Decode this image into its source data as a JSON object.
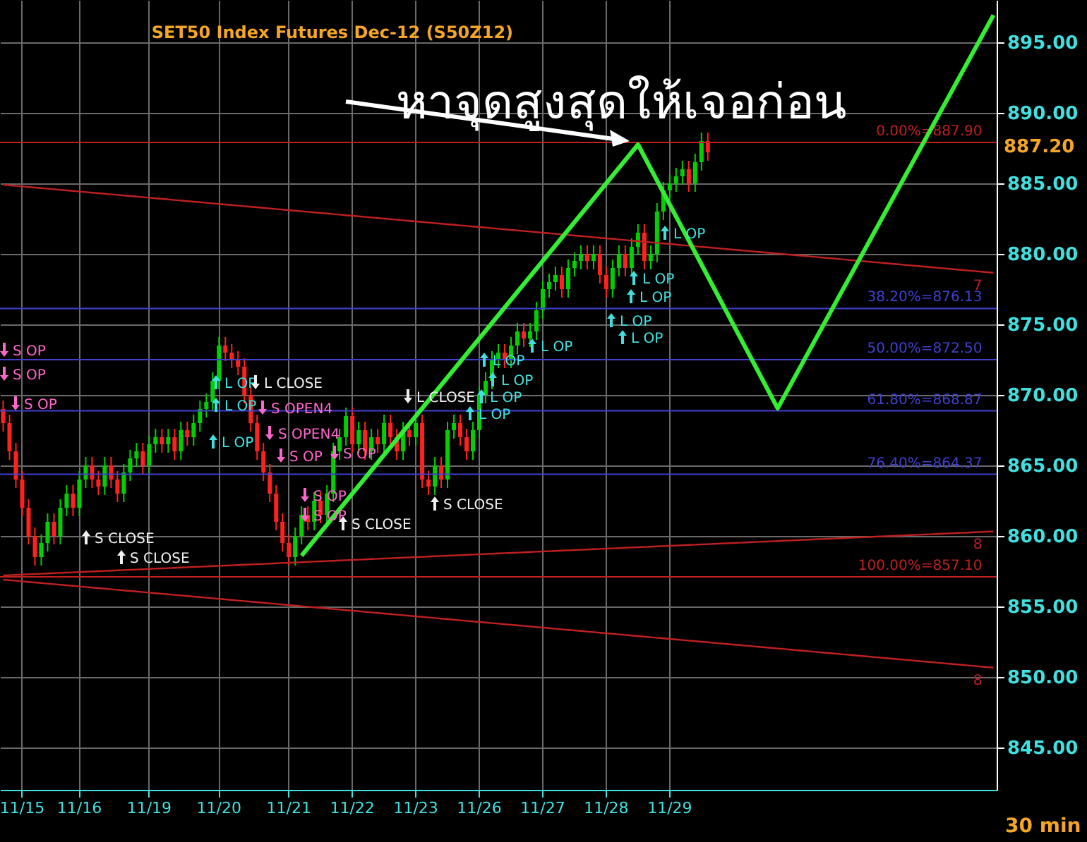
{
  "chart_data": {
    "type": "candlestick",
    "title": "SET50  Index  Futures  Dec-12  (S50Z12)",
    "categories": [
      null,
      null,
      null,
      "11/15",
      null,
      null,
      null,
      null,
      null,
      null,
      null,
      null,
      "11/16",
      null,
      null,
      null,
      null,
      null,
      null,
      null,
      null,
      null,
      null,
      "11/19",
      null,
      null,
      null,
      null,
      null,
      null,
      null,
      null,
      null,
      null,
      "11/20",
      null,
      null,
      null,
      null,
      null,
      null,
      null,
      null,
      null,
      null,
      "11/21",
      null,
      null,
      null,
      null,
      null,
      null,
      null,
      null,
      null,
      "11/22",
      null,
      null,
      null,
      null,
      null,
      null,
      null,
      null,
      null,
      "11/23",
      null,
      null,
      null,
      null,
      null,
      null,
      null,
      null,
      null,
      "11/26",
      null,
      null,
      null,
      null,
      null,
      null,
      null,
      null,
      null,
      "11/27",
      null,
      null,
      null,
      null,
      null,
      null,
      null,
      null,
      null,
      "11/28",
      null,
      null,
      null,
      null,
      null,
      null,
      null,
      null,
      null,
      "11/29",
      null,
      null,
      null,
      null,
      null,
      null,
      null,
      null,
      null,
      null,
      null,
      null,
      null,
      null,
      null,
      null,
      null,
      null,
      null,
      null,
      null,
      null,
      null,
      null,
      null,
      null,
      null,
      null,
      null,
      null,
      null,
      null,
      null,
      null,
      null,
      null,
      null,
      null,
      null,
      null,
      null,
      null,
      null,
      null,
      null,
      null,
      null,
      null,
      null,
      null,
      null
    ],
    "ohlc": [
      [
        869,
        869.6,
        867.4,
        868
      ],
      [
        868,
        868.6,
        865.4,
        866
      ],
      [
        866,
        866.6,
        863.4,
        864
      ],
      [
        864,
        864.6,
        861.4,
        862
      ],
      [
        862,
        862.6,
        859.4,
        860
      ],
      [
        860,
        860.6,
        857.9,
        858.5
      ],
      [
        858.5,
        860.1,
        857.9,
        859.5
      ],
      [
        859.5,
        861.6,
        858.9,
        861
      ],
      [
        861,
        861.6,
        859.4,
        860
      ],
      [
        860,
        862.6,
        859.4,
        862
      ],
      [
        862,
        863.6,
        861.4,
        863
      ],
      [
        863,
        863.6,
        861.4,
        862
      ],
      [
        862,
        864.6,
        861.4,
        864
      ],
      [
        864,
        865.6,
        863.4,
        865
      ],
      [
        865,
        865.6,
        863.4,
        864
      ],
      [
        864,
        864.6,
        862.9,
        863.5
      ],
      [
        863.5,
        865.6,
        862.9,
        865
      ],
      [
        865,
        865.6,
        863.4,
        864
      ],
      [
        864,
        864.6,
        862.4,
        863
      ],
      [
        863,
        865.1,
        862.4,
        864.5
      ],
      [
        864.5,
        866.1,
        863.9,
        865.5
      ],
      [
        865.5,
        866.6,
        864.9,
        866
      ],
      [
        866,
        866.6,
        864.4,
        865
      ],
      [
        865,
        867.1,
        864.4,
        866.5
      ],
      [
        866.5,
        867.6,
        865.9,
        867
      ],
      [
        867,
        867.6,
        865.9,
        866.5
      ],
      [
        866.5,
        867.6,
        865.9,
        867
      ],
      [
        867,
        867.6,
        865.4,
        866
      ],
      [
        866,
        868.1,
        865.4,
        867.5
      ],
      [
        867.5,
        868.1,
        866.4,
        867
      ],
      [
        867,
        868.6,
        866.4,
        868
      ],
      [
        868,
        869.6,
        867.4,
        869
      ],
      [
        869,
        870.1,
        868.4,
        869.5
      ],
      [
        869.5,
        871.6,
        868.9,
        871
      ],
      [
        871,
        874.1,
        870.4,
        873.5
      ],
      [
        873.5,
        874.1,
        872.4,
        873
      ],
      [
        873,
        873.6,
        871.9,
        872.5
      ],
      [
        872.5,
        873.1,
        871.4,
        872
      ],
      [
        872,
        872.6,
        869.4,
        870
      ],
      [
        870,
        870.6,
        867.4,
        868
      ],
      [
        868,
        868.6,
        865.4,
        866
      ],
      [
        866,
        866.6,
        863.9,
        864.5
      ],
      [
        864.5,
        865.1,
        862.4,
        863
      ],
      [
        863,
        863.6,
        860.4,
        861
      ],
      [
        861,
        861.6,
        858.9,
        859.5
      ],
      [
        859.5,
        860.1,
        857.9,
        858.5
      ],
      [
        858.5,
        860.6,
        857.9,
        860
      ],
      [
        860,
        862.1,
        859.4,
        861.5
      ],
      [
        861.5,
        862.1,
        860.4,
        861
      ],
      [
        861,
        863.1,
        860.4,
        862.5
      ],
      [
        862.5,
        863.1,
        860.9,
        861.5
      ],
      [
        861.5,
        863.6,
        860.9,
        863
      ],
      [
        863,
        866.6,
        862.4,
        866
      ],
      [
        866,
        867.6,
        865.4,
        867
      ],
      [
        867,
        869.1,
        866.4,
        868.5
      ],
      [
        868.5,
        869.1,
        865.9,
        866.5
      ],
      [
        866.5,
        868.1,
        865.9,
        867.5
      ],
      [
        867.5,
        868.1,
        865.4,
        866
      ],
      [
        866,
        867.6,
        865.4,
        867
      ],
      [
        867,
        867.6,
        865.9,
        866.5
      ],
      [
        866.5,
        868.6,
        865.9,
        868
      ],
      [
        868,
        868.6,
        866.4,
        867
      ],
      [
        867,
        867.6,
        865.4,
        866
      ],
      [
        866,
        868.1,
        865.4,
        867.5
      ],
      [
        867.5,
        868.1,
        866.4,
        867
      ],
      [
        867,
        868.6,
        866.4,
        868
      ],
      [
        868,
        868.6,
        863.4,
        864
      ],
      [
        864,
        864.6,
        862.9,
        863.5
      ],
      [
        863.5,
        865.6,
        862.9,
        865
      ],
      [
        865,
        865.6,
        863.4,
        864
      ],
      [
        864,
        868.1,
        863.4,
        867.5
      ],
      [
        867.5,
        868.6,
        866.9,
        868
      ],
      [
        868,
        868.6,
        866.4,
        867
      ],
      [
        867,
        867.6,
        865.4,
        866
      ],
      [
        866,
        868.1,
        865.4,
        867.5
      ],
      [
        867.5,
        870.6,
        866.9,
        870
      ],
      [
        870,
        871.6,
        869.4,
        871
      ],
      [
        871,
        873.1,
        870.4,
        872.5
      ],
      [
        872.5,
        873.6,
        871.9,
        873
      ],
      [
        873,
        873.6,
        871.9,
        872.5
      ],
      [
        872.5,
        874.1,
        871.9,
        873.5
      ],
      [
        873.5,
        875.1,
        872.9,
        874.5
      ],
      [
        874.5,
        875.1,
        873.4,
        874
      ],
      [
        874,
        875.1,
        873.4,
        874.5
      ],
      [
        874.5,
        876.6,
        873.9,
        876
      ],
      [
        876,
        878.1,
        875.4,
        877.5
      ],
      [
        877.5,
        878.6,
        876.9,
        878
      ],
      [
        878,
        879.1,
        877.4,
        878.5
      ],
      [
        878.5,
        879.1,
        876.9,
        877.5
      ],
      [
        877.5,
        879.6,
        876.9,
        879
      ],
      [
        879,
        880.1,
        878.4,
        879.5
      ],
      [
        879.5,
        880.6,
        878.9,
        880
      ],
      [
        880,
        880.6,
        878.9,
        879.5
      ],
      [
        879.5,
        880.6,
        878.9,
        880
      ],
      [
        880,
        880.6,
        877.9,
        878.5
      ],
      [
        878.5,
        879.1,
        876.9,
        877.5
      ],
      [
        877.5,
        879.6,
        876.9,
        879
      ],
      [
        879,
        880.6,
        878.4,
        880
      ],
      [
        880,
        880.6,
        878.4,
        879
      ],
      [
        879,
        881.1,
        878.4,
        880.5
      ],
      [
        880.5,
        882.1,
        879.9,
        881.5
      ],
      [
        881.5,
        882.1,
        878.9,
        879.5
      ],
      [
        879.5,
        880.6,
        878.9,
        880
      ],
      [
        880,
        883.6,
        879.4,
        883
      ],
      [
        883,
        885.1,
        882.4,
        884.5
      ],
      [
        884.5,
        885.6,
        883.9,
        885
      ],
      [
        885,
        886.1,
        884.4,
        885.5
      ],
      [
        885.5,
        886.6,
        884.9,
        886
      ],
      [
        886,
        886.6,
        884.4,
        885
      ],
      [
        885,
        887.1,
        884.4,
        886.5
      ],
      [
        886.5,
        888.6,
        885.9,
        888
      ],
      [
        888,
        888.6,
        886.6,
        887.2
      ],
      null,
      null,
      null,
      null,
      null,
      null,
      null,
      null,
      null,
      null,
      null,
      null,
      null,
      null,
      null,
      null,
      null,
      null,
      null,
      null,
      null,
      null,
      null,
      null,
      null,
      null,
      null,
      null,
      null,
      null,
      null,
      null,
      null,
      null,
      null,
      null,
      null,
      null,
      null,
      null,
      null,
      null,
      null,
      null,
      null
    ],
    "colors": [
      "#ff2020",
      "#ff2020",
      "#ff2020",
      "#ff2020",
      "#ff2020",
      "#ff2020",
      "#00d000",
      "#00d000",
      "#ff2020",
      "#00d000",
      "#00d000",
      "#ff2020",
      "#00d000",
      "#00d000",
      "#ff2020",
      "#ff2020",
      "#00d000",
      "#ff2020",
      "#ff2020",
      "#00d000",
      "#00d000",
      "#00d000",
      "#ff2020",
      "#00d000",
      "#00d000",
      "#ff2020",
      "#00d000",
      "#ff2020",
      "#00d000",
      "#ff2020",
      "#00d000",
      "#00d000",
      "#00d000",
      "#00d000",
      "#00d000",
      "#ff2020",
      "#ff2020",
      "#ff2020",
      "#ff2020",
      "#ff2020",
      "#ff2020",
      "#ff2020",
      "#ff2020",
      "#ff2020",
      "#ff2020",
      "#ff2020",
      "#00d000",
      "#00d000",
      "#ff2020",
      "#00d000",
      "#ff2020",
      "#00d000",
      "#00d000",
      "#00d000",
      "#00d000",
      "#ff2020",
      "#00d000",
      "#ff2020",
      "#00d000",
      "#ff2020",
      "#00d000",
      "#ff2020",
      "#ff2020",
      "#00d000",
      "#ff2020",
      "#00d000",
      "#ff2020",
      "#ff2020",
      "#00d000",
      "#ff2020",
      "#00d000",
      "#00d000",
      "#ff2020",
      "#ff2020",
      "#00d000",
      "#00d000",
      "#00d000",
      "#00d000",
      "#00d000",
      "#ff2020",
      "#00d000",
      "#00d000",
      "#ff2020",
      "#00d000",
      "#00d000",
      "#00d000",
      "#00d000",
      "#00d000",
      "#ff2020",
      "#00d000",
      "#00d000",
      "#00d000",
      "#ff2020",
      "#00d000",
      "#ff2020",
      "#ff2020",
      "#00d000",
      "#00d000",
      "#ff2020",
      "#00d000",
      "#00d000",
      "#ff2020",
      "#00d000",
      "#00d000",
      "#00d000",
      "#00d000",
      "#00d000",
      "#00d000",
      "#ff2020",
      "#00d000",
      "#00d000",
      "#ff2020",
      null,
      null,
      null,
      null,
      null,
      null,
      null,
      null,
      null,
      null,
      null,
      null,
      null,
      null,
      null,
      null,
      null,
      null,
      null,
      null,
      null,
      null,
      null,
      null,
      null,
      null,
      null,
      null,
      null,
      null,
      null,
      null,
      null,
      null,
      null,
      null,
      null,
      null,
      null,
      null,
      null,
      null,
      null,
      null,
      null
    ],
    "series": [
      {
        "type": "line",
        "name": "7",
        "color": "#c02020",
        "values": [
          884.9,
          884.86,
          884.82,
          884.78,
          884.74,
          884.7,
          884.66,
          884.62,
          884.58,
          884.54,
          884.5,
          884.46,
          884.42,
          884.38,
          884.34,
          884.3,
          884.26,
          884.22,
          884.18,
          884.14,
          884.1,
          884.06,
          884.02,
          883.98,
          883.94,
          883.9,
          883.86,
          883.82,
          883.78,
          883.74,
          883.7,
          883.66,
          883.62,
          883.58,
          883.54,
          883.5,
          883.46,
          883.42,
          883.38,
          883.34,
          883.3,
          883.26,
          883.22,
          883.18,
          883.14,
          883.1,
          883.06,
          883.02,
          882.98,
          882.94,
          882.9,
          882.86,
          882.82,
          882.78,
          882.74,
          882.7,
          882.66,
          882.62,
          882.58,
          882.54,
          882.5,
          882.46,
          882.42,
          882.38,
          882.34,
          882.3,
          882.26,
          882.22,
          882.18,
          882.14,
          882.1,
          882.06,
          882.02,
          881.98,
          881.94,
          881.9,
          881.86,
          881.82,
          881.78,
          881.74,
          881.7,
          881.66,
          881.62,
          881.58,
          881.54,
          881.5,
          881.46,
          881.42,
          881.38,
          881.34,
          881.3,
          881.26,
          881.22,
          881.18,
          881.14,
          881.1,
          881.06,
          881.02,
          880.98,
          880.94,
          880.9,
          880.86,
          880.82,
          880.78,
          880.74,
          880.7,
          880.66,
          880.62,
          880.58,
          880.54,
          880.5,
          880.46,
          880.42,
          880.38,
          880.34,
          880.3,
          880.26,
          880.22,
          880.18,
          880.14,
          880.1,
          880.06,
          880.02,
          879.98,
          879.94,
          879.9,
          879.86,
          879.82,
          879.78,
          879.74,
          879.7,
          879.66,
          879.62,
          879.58,
          879.54,
          879.5,
          879.46,
          879.42,
          879.38,
          879.34,
          879.3,
          879.26,
          879.22,
          879.18,
          879.14,
          879.1,
          879.06,
          879.02,
          878.98,
          878.94,
          878.9,
          878.86,
          878.82,
          878.78,
          878.74,
          878.7,
          878.66
        ]
      },
      {
        "type": "line",
        "name": "8",
        "color": "#c02020",
        "values": [
          857.2,
          857.22,
          857.24,
          857.26,
          857.28,
          857.3,
          857.32,
          857.34,
          857.36,
          857.38,
          857.4,
          857.42,
          857.44,
          857.46,
          857.48,
          857.5,
          857.52,
          857.54,
          857.56,
          857.58,
          857.6,
          857.62,
          857.64,
          857.66,
          857.68,
          857.7,
          857.72,
          857.74,
          857.76,
          857.78,
          857.8,
          857.82,
          857.84,
          857.86,
          857.88,
          857.9,
          857.92,
          857.94,
          857.96,
          857.98,
          858.0,
          858.02,
          858.04,
          858.06,
          858.08,
          858.1,
          858.12,
          858.14,
          858.16,
          858.18,
          858.2,
          858.22,
          858.24,
          858.26,
          858.28,
          858.3,
          858.32,
          858.34,
          858.36,
          858.38,
          858.4,
          858.42,
          858.44,
          858.46,
          858.48,
          858.5,
          858.52,
          858.54,
          858.56,
          858.58,
          858.6,
          858.62,
          858.64,
          858.66,
          858.68,
          858.7,
          858.72,
          858.74,
          858.76,
          858.78,
          858.8,
          858.82,
          858.84,
          858.86,
          858.88,
          858.9,
          858.92,
          858.94,
          858.96,
          858.98,
          859.0,
          859.02,
          859.04,
          859.06,
          859.08,
          859.1,
          859.12,
          859.14,
          859.16,
          859.18,
          859.2,
          859.22,
          859.24,
          859.26,
          859.28,
          859.3,
          859.32,
          859.34,
          859.36,
          859.38,
          859.4,
          859.42,
          859.44,
          859.46,
          859.48,
          859.5,
          859.52,
          859.54,
          859.56,
          859.58,
          859.6,
          859.62,
          859.64,
          859.66,
          859.68,
          859.7,
          859.72,
          859.74,
          859.76,
          859.78,
          859.8,
          859.82,
          859.84,
          859.86,
          859.88,
          859.9,
          859.92,
          859.94,
          859.96,
          859.98,
          860.0,
          860.02,
          860.04,
          860.06,
          860.08,
          860.1,
          860.12,
          860.14,
          860.16,
          860.18,
          860.2,
          860.22,
          860.24,
          860.26,
          860.28,
          860.3,
          860.32
        ]
      },
      {
        "type": "line",
        "name": "8",
        "color": "#c02020",
        "values": [
          856.9,
          856.86,
          856.82,
          856.78,
          856.74,
          856.7,
          856.66,
          856.62,
          856.58,
          856.54,
          856.5,
          856.46,
          856.42,
          856.38,
          856.34,
          856.3,
          856.26,
          856.22,
          856.18,
          856.14,
          856.1,
          856.06,
          856.02,
          855.98,
          855.94,
          855.9,
          855.86,
          855.82,
          855.78,
          855.74,
          855.7,
          855.66,
          855.62,
          855.58,
          855.54,
          855.5,
          855.46,
          855.42,
          855.38,
          855.34,
          855.3,
          855.26,
          855.22,
          855.18,
          855.14,
          855.1,
          855.06,
          855.02,
          854.98,
          854.94,
          854.9,
          854.86,
          854.82,
          854.78,
          854.74,
          854.7,
          854.66,
          854.62,
          854.58,
          854.54,
          854.5,
          854.46,
          854.42,
          854.38,
          854.34,
          854.3,
          854.26,
          854.22,
          854.18,
          854.14,
          854.1,
          854.06,
          854.02,
          853.98,
          853.94,
          853.9,
          853.86,
          853.82,
          853.78,
          853.74,
          853.7,
          853.66,
          853.62,
          853.58,
          853.54,
          853.5,
          853.46,
          853.42,
          853.38,
          853.34,
          853.3,
          853.26,
          853.22,
          853.18,
          853.14,
          853.1,
          853.06,
          853.02,
          852.98,
          852.94,
          852.9,
          852.86,
          852.82,
          852.78,
          852.74,
          852.7,
          852.66,
          852.62,
          852.58,
          852.54,
          852.5,
          852.46,
          852.42,
          852.38,
          852.34,
          852.3,
          852.26,
          852.22,
          852.18,
          852.14,
          852.1,
          852.06,
          852.02,
          851.98,
          851.94,
          851.9,
          851.86,
          851.82,
          851.78,
          851.74,
          851.7,
          851.66,
          851.62,
          851.58,
          851.54,
          851.5,
          851.46,
          851.42,
          851.38,
          851.34,
          851.3,
          851.26,
          851.22,
          851.18,
          851.14,
          851.1,
          851.06,
          851.02,
          850.98,
          850.94,
          850.9,
          850.86,
          850.82,
          850.78,
          850.74,
          850.7,
          850.66
        ]
      },
      {
        "type": "line",
        "color": "#33ee33",
        "values": [
          null,
          null,
          null,
          null,
          null,
          null,
          null,
          null,
          null,
          null,
          null,
          null,
          null,
          null,
          null,
          null,
          null,
          null,
          null,
          null,
          null,
          null,
          null,
          null,
          null,
          null,
          null,
          null,
          null,
          null,
          null,
          null,
          null,
          null,
          null,
          null,
          null,
          null,
          null,
          null,
          null,
          null,
          null,
          null,
          null,
          null,
          null,
          858.6,
          859.15,
          859.7,
          860.25,
          860.8,
          861.35,
          861.9,
          862.45,
          863.0,
          863.55,
          864.1,
          864.65,
          865.2,
          865.75,
          866.3,
          866.85,
          867.4,
          867.95,
          868.5,
          869.05,
          869.6,
          870.15,
          870.7,
          871.25,
          871.8,
          872.35,
          872.9,
          873.45,
          874.0,
          874.55,
          875.1,
          875.65,
          876.2,
          876.75,
          877.3,
          877.85,
          878.4,
          878.95,
          879.5,
          880.05,
          880.6,
          881.15,
          881.7,
          882.25,
          882.8,
          883.35,
          883.9,
          884.45,
          885.0,
          885.55,
          886.1,
          886.65,
          887.2,
          887.75,
          886.9,
          886.05,
          885.2,
          884.35,
          883.5,
          882.65,
          881.8,
          880.95,
          880.1,
          879.25,
          878.4,
          877.55,
          876.7,
          875.85,
          875.0,
          874.15,
          873.3,
          872.45,
          871.6,
          870.75,
          869.9,
          869.05,
          869.87,
          870.69,
          871.51,
          872.33,
          873.15,
          873.97,
          874.79,
          875.61,
          876.43,
          877.25,
          878.07,
          878.89,
          879.71,
          880.53,
          881.35,
          882.17,
          882.99,
          883.81,
          884.63,
          885.45,
          886.27,
          887.09,
          887.91,
          888.73,
          889.55,
          890.37,
          891.19,
          892.01,
          892.83,
          893.65,
          894.47,
          895.29,
          896.11,
          896.93
        ]
      }
    ],
    "ylim": [
      842,
      898
    ],
    "yticks": [
      {
        "value": 845,
        "label": "845.00"
      },
      {
        "value": 850,
        "label": "850.00"
      },
      {
        "value": 855,
        "label": "855.00"
      },
      {
        "value": 860,
        "label": "860.00"
      },
      {
        "value": 865,
        "label": "865.00"
      },
      {
        "value": 870,
        "label": "870.00"
      },
      {
        "value": 875,
        "label": "875.00"
      },
      {
        "value": 880,
        "label": "880.00"
      },
      {
        "value": 885,
        "label": "885.00"
      },
      {
        "value": 890,
        "label": "890.00"
      },
      {
        "value": 895,
        "label": "895.00"
      }
    ],
    "grid": true,
    "ref_lines": [
      {
        "axis": "y",
        "value": 887.9,
        "label": "0.00%=887.90",
        "color": "#c02020"
      },
      {
        "axis": "y",
        "value": 876.13,
        "label": "38.20%=876.13",
        "color": "#4040d0"
      },
      {
        "axis": "y",
        "value": 872.5,
        "label": "50.00%=872.50",
        "color": "#4040d0"
      },
      {
        "axis": "y",
        "value": 868.87,
        "label": "61.80%=868.87",
        "color": "#4040d0"
      },
      {
        "axis": "y",
        "value": 864.37,
        "label": "76.40%=864.37",
        "color": "#4040d0"
      },
      {
        "axis": "y",
        "value": 857.1,
        "label": "100.00%=857.10",
        "color": "#c02020"
      }
    ],
    "annotations": [
      "หาจุดสูงสุดให้เจอก่อน",
      "887.20",
      "S OP",
      "S OP",
      "S OP",
      "S CLOSE",
      "S CLOSE",
      "L OP",
      "L OP",
      "L OP",
      "L CLOSE",
      "S OPEN4",
      "S OPEN4",
      "S OP",
      "S OP",
      "S OP",
      "S OP",
      "S CLOSE",
      "L CLOSE",
      "S CLOSE",
      "L OP",
      "L OP",
      "L OP",
      "L OP",
      "L OP",
      "L OP",
      "L OP",
      "L OP",
      "L OP",
      "L OP",
      "30  min"
    ]
  }
}
